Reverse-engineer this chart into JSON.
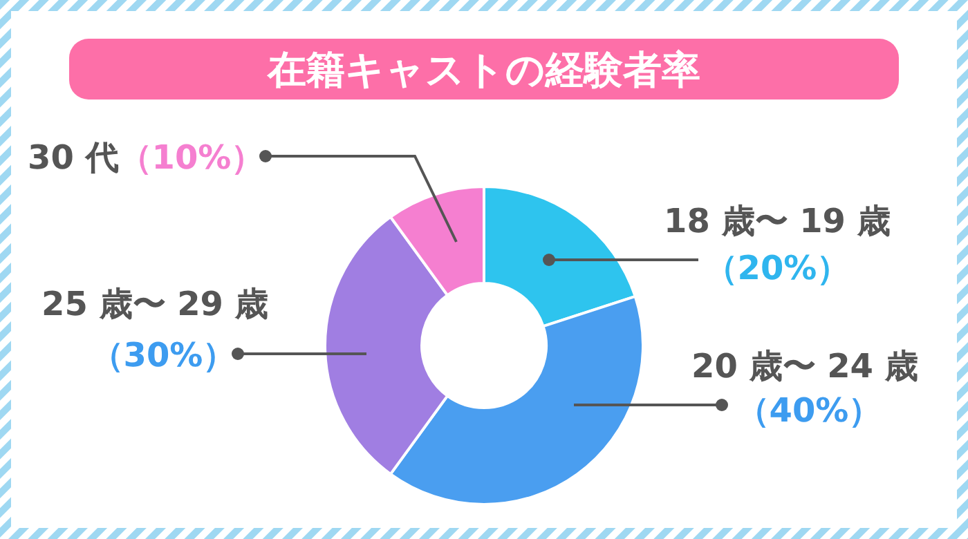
{
  "chart_data": {
    "type": "donut",
    "title": "在籍キャストの経験者率",
    "categories": [
      "18 歳〜 19 歳",
      "20 歳〜 24 歳",
      "25 歳〜 29 歳",
      "30 代"
    ],
    "values": [
      20,
      40,
      30,
      10
    ],
    "colors": [
      "#2ec4ee",
      "#4a9ef0",
      "#a07ee2",
      "#f57fd0"
    ],
    "value_labels": [
      "（20%）",
      "（40%）",
      "（30%）",
      "（10%）"
    ]
  }
}
